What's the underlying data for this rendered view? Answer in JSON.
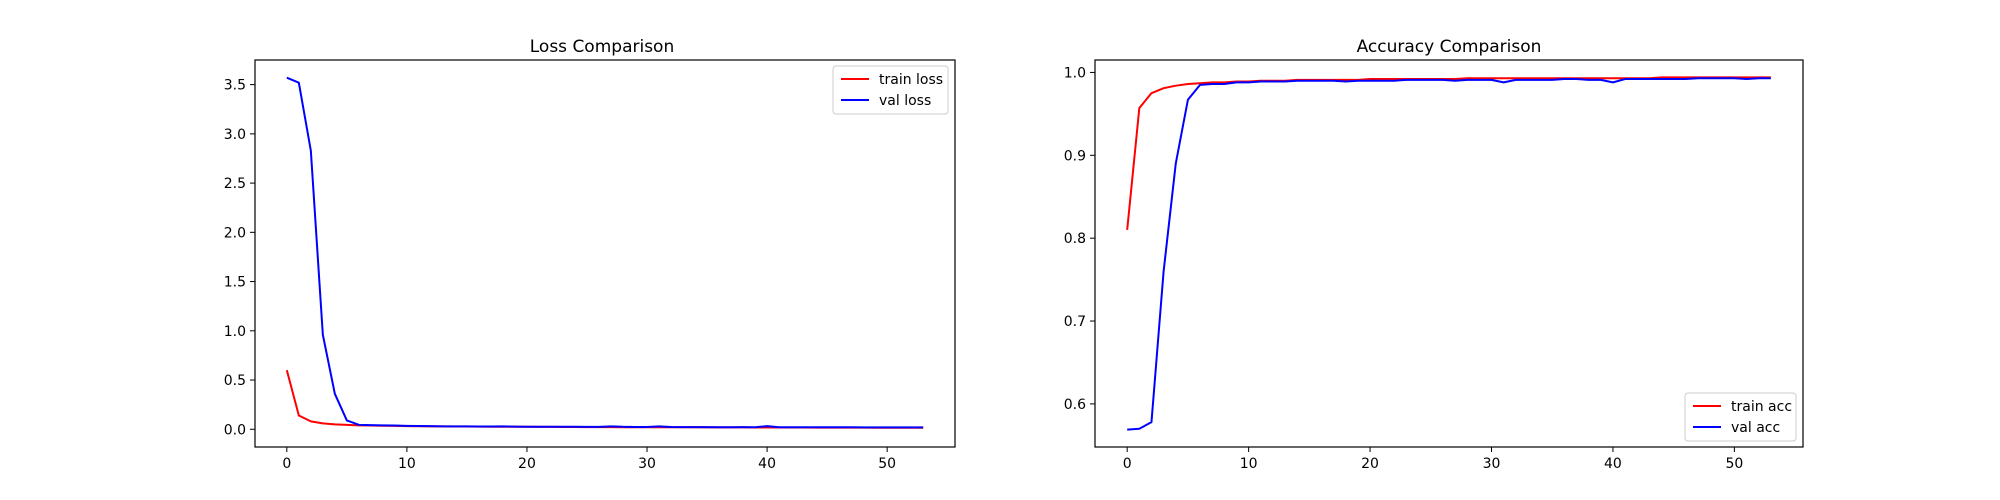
{
  "chart_data": [
    {
      "type": "line",
      "title": "Loss Comparison",
      "xlabel": "",
      "ylabel": "",
      "xlim": [
        -2.65,
        55.65
      ],
      "ylim": [
        -0.18,
        3.75
      ],
      "xticks": [
        0,
        10,
        20,
        30,
        40,
        50
      ],
      "yticks": [
        0.0,
        0.5,
        1.0,
        1.5,
        2.0,
        2.5,
        3.0,
        3.5
      ],
      "ytick_format": 1,
      "grid": false,
      "legend_position": "top-right",
      "series": [
        {
          "name": "train loss",
          "color": "#ff0000",
          "x": [
            0,
            1,
            2,
            3,
            4,
            5,
            6,
            7,
            8,
            9,
            10,
            11,
            12,
            13,
            14,
            15,
            16,
            17,
            18,
            19,
            20,
            21,
            22,
            23,
            24,
            25,
            26,
            27,
            28,
            29,
            30,
            31,
            32,
            33,
            34,
            35,
            36,
            37,
            38,
            39,
            40,
            41,
            42,
            43,
            44,
            45,
            46,
            47,
            48,
            49,
            50,
            51,
            52,
            53
          ],
          "y": [
            0.6,
            0.14,
            0.08,
            0.06,
            0.05,
            0.045,
            0.04,
            0.038,
            0.036,
            0.034,
            0.032,
            0.031,
            0.03,
            0.029,
            0.028,
            0.028,
            0.027,
            0.026,
            0.026,
            0.025,
            0.025,
            0.024,
            0.024,
            0.023,
            0.023,
            0.022,
            0.022,
            0.022,
            0.021,
            0.021,
            0.021,
            0.02,
            0.02,
            0.02,
            0.02,
            0.019,
            0.019,
            0.019,
            0.019,
            0.018,
            0.018,
            0.018,
            0.018,
            0.018,
            0.017,
            0.017,
            0.017,
            0.017,
            0.017,
            0.016,
            0.016,
            0.016,
            0.016,
            0.016
          ]
        },
        {
          "name": "val loss",
          "color": "#0000ff",
          "x": [
            0,
            1,
            2,
            3,
            4,
            5,
            6,
            7,
            8,
            9,
            10,
            11,
            12,
            13,
            14,
            15,
            16,
            17,
            18,
            19,
            20,
            21,
            22,
            23,
            24,
            25,
            26,
            27,
            28,
            29,
            30,
            31,
            32,
            33,
            34,
            35,
            36,
            37,
            38,
            39,
            40,
            41,
            42,
            43,
            44,
            45,
            46,
            47,
            48,
            49,
            50,
            51,
            52,
            53
          ],
          "y": [
            3.57,
            3.52,
            2.83,
            0.96,
            0.36,
            0.09,
            0.045,
            0.042,
            0.04,
            0.038,
            0.035,
            0.033,
            0.032,
            0.03,
            0.03,
            0.029,
            0.028,
            0.028,
            0.03,
            0.027,
            0.026,
            0.026,
            0.025,
            0.025,
            0.025,
            0.024,
            0.024,
            0.03,
            0.025,
            0.023,
            0.023,
            0.03,
            0.023,
            0.022,
            0.022,
            0.022,
            0.021,
            0.021,
            0.022,
            0.021,
            0.032,
            0.021,
            0.021,
            0.02,
            0.02,
            0.02,
            0.02,
            0.02,
            0.019,
            0.019,
            0.019,
            0.019,
            0.019,
            0.019
          ]
        }
      ]
    },
    {
      "type": "line",
      "title": "Accuracy Comparison",
      "xlabel": "",
      "ylabel": "",
      "xlim": [
        -2.65,
        55.65
      ],
      "ylim": [
        0.548,
        1.015
      ],
      "xticks": [
        0,
        10,
        20,
        30,
        40,
        50
      ],
      "yticks": [
        0.6,
        0.7,
        0.8,
        0.9,
        1.0
      ],
      "ytick_format": 1,
      "grid": false,
      "legend_position": "bottom-right",
      "series": [
        {
          "name": "train acc",
          "color": "#ff0000",
          "x": [
            0,
            1,
            2,
            3,
            4,
            5,
            6,
            7,
            8,
            9,
            10,
            11,
            12,
            13,
            14,
            15,
            16,
            17,
            18,
            19,
            20,
            21,
            22,
            23,
            24,
            25,
            26,
            27,
            28,
            29,
            30,
            31,
            32,
            33,
            34,
            35,
            36,
            37,
            38,
            39,
            40,
            41,
            42,
            43,
            44,
            45,
            46,
            47,
            48,
            49,
            50,
            51,
            52,
            53
          ],
          "y": [
            0.81,
            0.957,
            0.975,
            0.981,
            0.984,
            0.986,
            0.987,
            0.988,
            0.988,
            0.989,
            0.989,
            0.99,
            0.99,
            0.99,
            0.991,
            0.991,
            0.991,
            0.991,
            0.991,
            0.991,
            0.992,
            0.992,
            0.992,
            0.992,
            0.992,
            0.992,
            0.992,
            0.992,
            0.993,
            0.993,
            0.993,
            0.993,
            0.993,
            0.993,
            0.993,
            0.993,
            0.993,
            0.993,
            0.993,
            0.993,
            0.993,
            0.993,
            0.993,
            0.993,
            0.994,
            0.994,
            0.994,
            0.994,
            0.994,
            0.994,
            0.994,
            0.994,
            0.994,
            0.994
          ]
        },
        {
          "name": "val acc",
          "color": "#0000ff",
          "x": [
            0,
            1,
            2,
            3,
            4,
            5,
            6,
            7,
            8,
            9,
            10,
            11,
            12,
            13,
            14,
            15,
            16,
            17,
            18,
            19,
            20,
            21,
            22,
            23,
            24,
            25,
            26,
            27,
            28,
            29,
            30,
            31,
            32,
            33,
            34,
            35,
            36,
            37,
            38,
            39,
            40,
            41,
            42,
            43,
            44,
            45,
            46,
            47,
            48,
            49,
            50,
            51,
            52,
            53
          ],
          "y": [
            0.569,
            0.57,
            0.578,
            0.76,
            0.89,
            0.967,
            0.985,
            0.986,
            0.986,
            0.988,
            0.988,
            0.989,
            0.989,
            0.989,
            0.99,
            0.99,
            0.99,
            0.99,
            0.989,
            0.99,
            0.99,
            0.99,
            0.99,
            0.991,
            0.991,
            0.991,
            0.991,
            0.99,
            0.991,
            0.991,
            0.991,
            0.988,
            0.991,
            0.991,
            0.991,
            0.991,
            0.992,
            0.992,
            0.991,
            0.991,
            0.988,
            0.992,
            0.992,
            0.992,
            0.992,
            0.992,
            0.992,
            0.993,
            0.993,
            0.993,
            0.993,
            0.992,
            0.993,
            0.993
          ]
        }
      ]
    }
  ]
}
